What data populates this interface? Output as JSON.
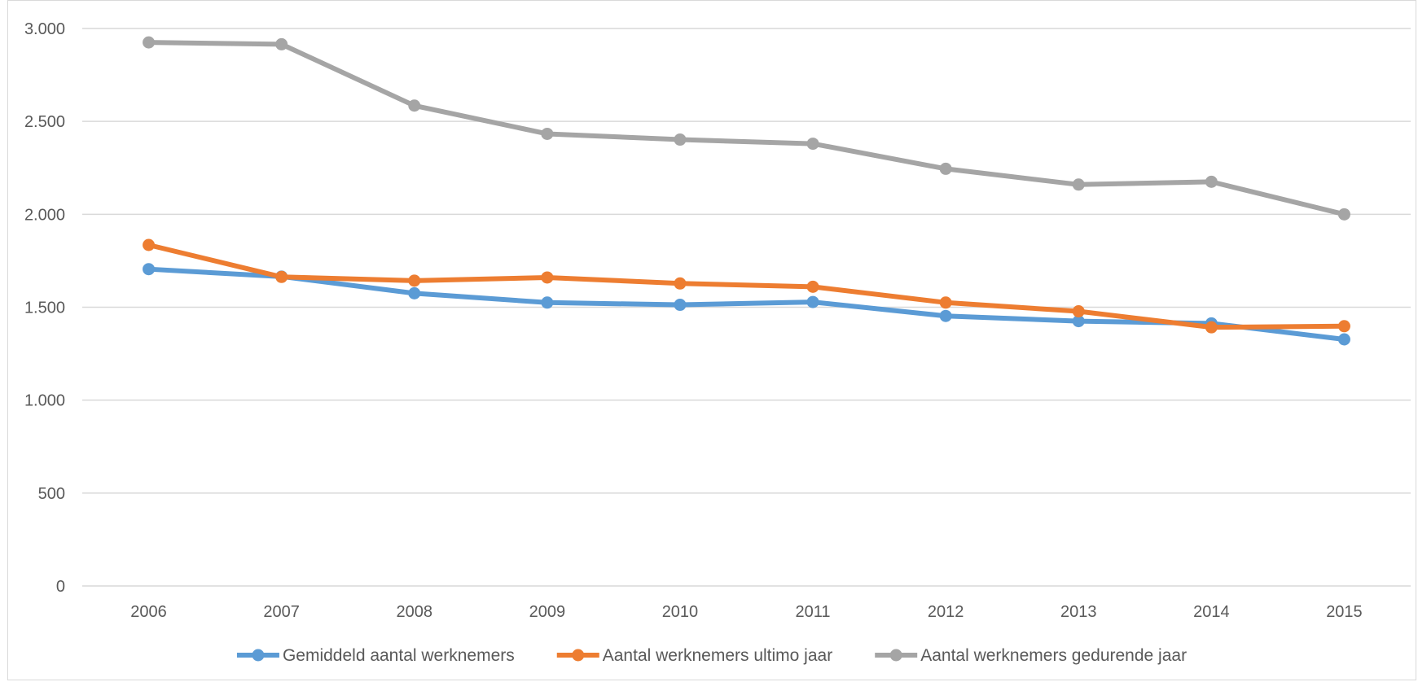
{
  "chart_data": {
    "type": "line",
    "title": "",
    "xlabel": "",
    "ylabel": "",
    "categories": [
      "2006",
      "2007",
      "2008",
      "2009",
      "2010",
      "2011",
      "2012",
      "2013",
      "2014",
      "2015"
    ],
    "ylim": [
      0,
      3000
    ],
    "yticks": [
      0,
      500,
      1000,
      1500,
      2000,
      2500,
      3000
    ],
    "ytick_labels": [
      "0",
      "500",
      "1.000",
      "1.500",
      "2.000",
      "2.500",
      "3.000"
    ],
    "grid": true,
    "legend_position": "bottom",
    "series": [
      {
        "name": "Gemiddeld aantal werknemers",
        "color": "#5b9bd5",
        "values": [
          1705,
          1665,
          1575,
          1525,
          1513,
          1528,
          1453,
          1425,
          1413,
          1327
        ]
      },
      {
        "name": "Aantal werknemers ultimo jaar",
        "color": "#ed7d31",
        "values": [
          1835,
          1663,
          1643,
          1660,
          1628,
          1610,
          1525,
          1478,
          1392,
          1398
        ]
      },
      {
        "name": "Aantal werknemers gedurende jaar",
        "color": "#a5a5a5",
        "values": [
          2925,
          2915,
          2585,
          2433,
          2402,
          2380,
          2245,
          2160,
          2175,
          2000
        ]
      }
    ]
  }
}
